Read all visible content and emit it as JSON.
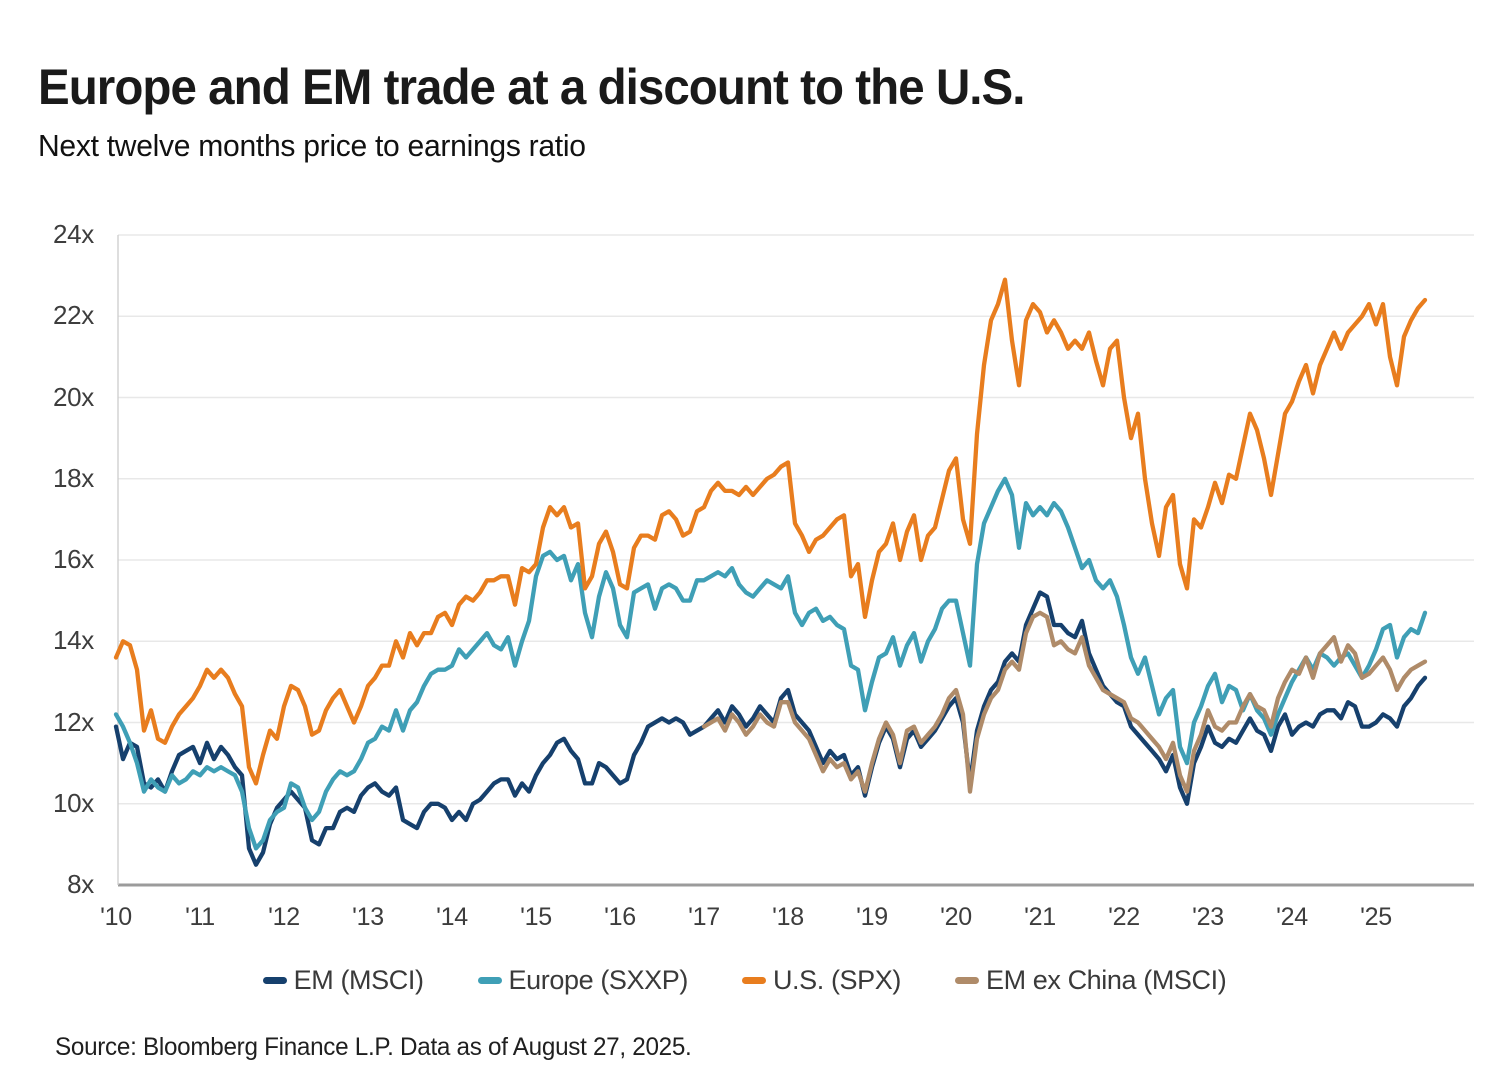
{
  "title": "Europe and EM trade at a discount to the U.S.",
  "subtitle": "Next twelve months price to earnings ratio",
  "source": "Source: Bloomberg Finance L.P. Data as of August 27, 2025.",
  "colors": {
    "background": "#ffffff",
    "gridline": "#e8e8e8",
    "axis_bottom": "#9b9b9b",
    "axis_left": "#cfcfcf",
    "text": "#1a1a1a",
    "tick_text": "#3d3d3d"
  },
  "chart_data": {
    "type": "line",
    "title": "Europe and EM trade at a discount to the U.S.",
    "subtitle": "Next twelve months price to earnings ratio",
    "grid": true,
    "legend_position": "bottom",
    "x_start": "2010-01",
    "x_end": "2025-08",
    "x_frequency": "monthly",
    "xlabel": "",
    "ylabel": "Next twelve months price to earnings ratio",
    "ylim": [
      8,
      24
    ],
    "y_axis": {
      "max": 24,
      "min": 8,
      "tick_values": [
        24,
        22,
        20,
        18,
        16,
        14,
        12,
        10,
        8
      ],
      "tick_labels": [
        "24x",
        "22x",
        "20x",
        "18x",
        "16x",
        "14x",
        "12x",
        "10x",
        "8x"
      ]
    },
    "x_axis": {
      "tick_labels": [
        "'10",
        "'11",
        "'12",
        "'13",
        "'14",
        "'15",
        "'16",
        "'17",
        "'18",
        "'19",
        "'20",
        "'21",
        "'22",
        "'23",
        "'24",
        "'25"
      ],
      "tick_years": [
        2010,
        2011,
        2012,
        2013,
        2014,
        2015,
        2016,
        2017,
        2018,
        2019,
        2020,
        2021,
        2022,
        2023,
        2024,
        2025
      ]
    },
    "series": [
      {
        "name": "EM (MSCI)",
        "color": "#16406D",
        "values": [
          11.9,
          11.1,
          11.5,
          11.4,
          10.5,
          10.4,
          10.6,
          10.3,
          10.8,
          11.2,
          11.3,
          11.4,
          11.0,
          11.5,
          11.1,
          11.4,
          11.2,
          10.9,
          10.7,
          8.9,
          8.5,
          8.8,
          9.5,
          9.9,
          10.1,
          10.3,
          10.1,
          9.9,
          9.1,
          9.0,
          9.4,
          9.4,
          9.8,
          9.9,
          9.8,
          10.2,
          10.4,
          10.5,
          10.3,
          10.2,
          10.4,
          9.6,
          9.5,
          9.4,
          9.8,
          10.0,
          10.0,
          9.9,
          9.6,
          9.8,
          9.6,
          10.0,
          10.1,
          10.3,
          10.5,
          10.6,
          10.6,
          10.2,
          10.5,
          10.3,
          10.7,
          11.0,
          11.2,
          11.5,
          11.6,
          11.3,
          11.1,
          10.5,
          10.5,
          11.0,
          10.9,
          10.7,
          10.5,
          10.6,
          11.2,
          11.5,
          11.9,
          12.0,
          12.1,
          12.0,
          12.1,
          12.0,
          11.7,
          11.8,
          11.9,
          12.1,
          12.3,
          12.0,
          12.4,
          12.2,
          11.9,
          12.1,
          12.4,
          12.2,
          12.0,
          12.6,
          12.8,
          12.2,
          12.0,
          11.8,
          11.4,
          11.0,
          11.3,
          11.1,
          11.2,
          10.7,
          10.9,
          10.2,
          10.9,
          11.5,
          11.9,
          11.6,
          10.9,
          11.6,
          11.8,
          11.4,
          11.6,
          11.8,
          12.1,
          12.4,
          12.6,
          12.0,
          10.5,
          11.8,
          12.4,
          12.8,
          13.0,
          13.5,
          13.7,
          13.5,
          14.4,
          14.8,
          15.2,
          15.1,
          14.4,
          14.4,
          14.2,
          14.1,
          14.5,
          13.7,
          13.3,
          12.9,
          12.7,
          12.5,
          12.4,
          11.9,
          11.7,
          11.5,
          11.3,
          11.1,
          10.8,
          11.2,
          10.4,
          10.0,
          11.0,
          11.4,
          11.9,
          11.5,
          11.4,
          11.6,
          11.5,
          11.8,
          12.1,
          11.8,
          11.7,
          11.3,
          11.9,
          12.2,
          11.7,
          11.9,
          12.0,
          11.9,
          12.2,
          12.3,
          12.3,
          12.1,
          12.5,
          12.4,
          11.9,
          11.9,
          12.0,
          12.2,
          12.1,
          11.9,
          12.4,
          12.6,
          12.9,
          13.1
        ]
      },
      {
        "name": "Europe (SXXP)",
        "color": "#3F9FB6",
        "values": [
          12.2,
          11.9,
          11.5,
          11.0,
          10.3,
          10.6,
          10.4,
          10.3,
          10.7,
          10.5,
          10.6,
          10.8,
          10.7,
          10.9,
          10.8,
          10.9,
          10.8,
          10.7,
          10.3,
          9.4,
          8.9,
          9.1,
          9.6,
          9.8,
          9.9,
          10.5,
          10.4,
          9.9,
          9.6,
          9.8,
          10.3,
          10.6,
          10.8,
          10.7,
          10.8,
          11.1,
          11.5,
          11.6,
          11.9,
          11.8,
          12.3,
          11.8,
          12.3,
          12.5,
          12.9,
          13.2,
          13.3,
          13.3,
          13.4,
          13.8,
          13.6,
          13.8,
          14.0,
          14.2,
          13.9,
          13.8,
          14.1,
          13.4,
          14.0,
          14.5,
          15.6,
          16.1,
          16.2,
          16.0,
          16.1,
          15.5,
          15.9,
          14.7,
          14.1,
          15.1,
          15.7,
          15.3,
          14.4,
          14.1,
          15.2,
          15.3,
          15.4,
          14.8,
          15.3,
          15.4,
          15.3,
          15.0,
          15.0,
          15.5,
          15.5,
          15.6,
          15.7,
          15.6,
          15.8,
          15.4,
          15.2,
          15.1,
          15.3,
          15.5,
          15.4,
          15.3,
          15.6,
          14.7,
          14.4,
          14.7,
          14.8,
          14.5,
          14.6,
          14.4,
          14.3,
          13.4,
          13.3,
          12.3,
          13.0,
          13.6,
          13.7,
          14.1,
          13.4,
          13.9,
          14.2,
          13.5,
          14.0,
          14.3,
          14.8,
          15.0,
          15.0,
          14.2,
          13.4,
          15.9,
          16.9,
          17.3,
          17.7,
          18.0,
          17.6,
          16.3,
          17.4,
          17.1,
          17.3,
          17.1,
          17.4,
          17.2,
          16.8,
          16.3,
          15.8,
          16.0,
          15.5,
          15.3,
          15.5,
          15.1,
          14.4,
          13.6,
          13.2,
          13.6,
          12.9,
          12.2,
          12.6,
          12.8,
          11.4,
          11.0,
          12.0,
          12.4,
          12.9,
          13.2,
          12.5,
          12.9,
          12.8,
          12.3,
          12.7,
          12.3,
          12.1,
          11.7,
          12.2,
          12.6,
          13.0,
          13.3,
          13.6,
          13.3,
          13.7,
          13.6,
          13.4,
          13.6,
          13.7,
          13.4,
          13.1,
          13.4,
          13.8,
          14.3,
          14.4,
          13.6,
          14.1,
          14.3,
          14.2,
          14.7
        ]
      },
      {
        "name": "U.S. (SPX)",
        "color": "#E87D1E",
        "values": [
          13.6,
          14.0,
          13.9,
          13.3,
          11.8,
          12.3,
          11.6,
          11.5,
          11.9,
          12.2,
          12.4,
          12.6,
          12.9,
          13.3,
          13.1,
          13.3,
          13.1,
          12.7,
          12.4,
          10.9,
          10.5,
          11.2,
          11.8,
          11.6,
          12.4,
          12.9,
          12.8,
          12.4,
          11.7,
          11.8,
          12.3,
          12.6,
          12.8,
          12.4,
          12.0,
          12.4,
          12.9,
          13.1,
          13.4,
          13.4,
          14.0,
          13.6,
          14.2,
          13.9,
          14.2,
          14.2,
          14.6,
          14.7,
          14.4,
          14.9,
          15.1,
          15.0,
          15.2,
          15.5,
          15.5,
          15.6,
          15.6,
          14.9,
          15.8,
          15.7,
          15.9,
          16.8,
          17.3,
          17.1,
          17.3,
          16.8,
          16.9,
          15.3,
          15.6,
          16.4,
          16.7,
          16.2,
          15.4,
          15.3,
          16.3,
          16.6,
          16.6,
          16.5,
          17.1,
          17.2,
          17.0,
          16.6,
          16.7,
          17.2,
          17.3,
          17.7,
          17.9,
          17.7,
          17.7,
          17.6,
          17.8,
          17.6,
          17.8,
          18.0,
          18.1,
          18.3,
          18.4,
          16.9,
          16.6,
          16.2,
          16.5,
          16.6,
          16.8,
          17.0,
          17.1,
          15.6,
          15.9,
          14.6,
          15.5,
          16.2,
          16.4,
          16.9,
          16.0,
          16.7,
          17.1,
          16.0,
          16.6,
          16.8,
          17.5,
          18.2,
          18.5,
          17.0,
          16.4,
          19.1,
          20.8,
          21.9,
          22.3,
          22.9,
          21.4,
          20.3,
          21.9,
          22.3,
          22.1,
          21.6,
          21.9,
          21.6,
          21.2,
          21.4,
          21.2,
          21.6,
          20.9,
          20.3,
          21.2,
          21.4,
          20.0,
          19.0,
          19.6,
          18.0,
          16.9,
          16.1,
          17.3,
          17.6,
          15.9,
          15.3,
          17.0,
          16.8,
          17.3,
          17.9,
          17.4,
          18.1,
          18.0,
          18.8,
          19.6,
          19.2,
          18.5,
          17.6,
          18.6,
          19.6,
          19.9,
          20.4,
          20.8,
          20.1,
          20.8,
          21.2,
          21.6,
          21.2,
          21.6,
          21.8,
          22.0,
          22.3,
          21.8,
          22.3,
          21.0,
          20.3,
          21.5,
          21.9,
          22.2,
          22.4
        ]
      },
      {
        "name": "EM ex China (MSCI)",
        "color": "#AF8B69",
        "values": [
          null,
          null,
          null,
          null,
          null,
          null,
          null,
          null,
          null,
          null,
          null,
          null,
          null,
          null,
          null,
          null,
          null,
          null,
          null,
          null,
          null,
          null,
          null,
          null,
          null,
          null,
          null,
          null,
          null,
          null,
          null,
          null,
          null,
          null,
          null,
          null,
          null,
          null,
          null,
          null,
          null,
          null,
          null,
          null,
          null,
          null,
          null,
          null,
          null,
          null,
          null,
          null,
          null,
          null,
          null,
          null,
          null,
          null,
          null,
          null,
          null,
          null,
          null,
          null,
          null,
          null,
          null,
          null,
          null,
          null,
          null,
          null,
          null,
          null,
          null,
          null,
          null,
          null,
          null,
          null,
          null,
          null,
          null,
          null,
          11.9,
          12.0,
          12.1,
          11.8,
          12.2,
          12.0,
          11.7,
          11.9,
          12.2,
          12.0,
          11.9,
          12.5,
          12.5,
          12.0,
          11.8,
          11.6,
          11.2,
          10.8,
          11.1,
          10.9,
          11.0,
          10.6,
          10.8,
          10.3,
          11.0,
          11.6,
          12.0,
          11.7,
          11.0,
          11.8,
          11.9,
          11.5,
          11.7,
          11.9,
          12.2,
          12.6,
          12.8,
          12.2,
          10.3,
          11.6,
          12.2,
          12.6,
          12.8,
          13.3,
          13.5,
          13.3,
          14.2,
          14.6,
          14.7,
          14.6,
          13.9,
          14.0,
          13.8,
          13.7,
          14.1,
          13.4,
          13.1,
          12.8,
          12.7,
          12.6,
          12.5,
          12.1,
          12.0,
          11.8,
          11.6,
          11.4,
          11.1,
          11.5,
          10.7,
          10.3,
          11.3,
          11.7,
          12.3,
          11.9,
          11.8,
          12.0,
          12.0,
          12.4,
          12.7,
          12.4,
          12.3,
          11.9,
          12.6,
          13.0,
          13.3,
          13.2,
          13.6,
          13.1,
          13.7,
          13.9,
          14.1,
          13.5,
          13.9,
          13.7,
          13.1,
          13.2,
          13.4,
          13.6,
          13.3,
          12.8,
          13.1,
          13.3,
          13.4,
          13.5
        ]
      }
    ]
  }
}
